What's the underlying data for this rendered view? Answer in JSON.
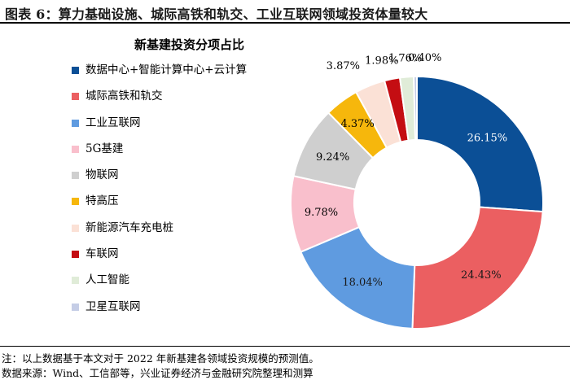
{
  "header": {
    "title": "图表 6：算力基础设施、城际高铁和轨交、工业互联网领域投资体量较大"
  },
  "chart_data": {
    "type": "pie",
    "title": "新基建投资分项占比",
    "donut": true,
    "categories": [
      "数据中心+智能计算中心+云计算",
      "城际高铁和轨交",
      "工业互联网",
      "5G基建",
      "物联网",
      "特高压",
      "新能源汽车充电桩",
      "车联网",
      "人工智能",
      "卫星互联网"
    ],
    "values": [
      26.15,
      24.43,
      18.04,
      9.78,
      9.24,
      4.37,
      3.87,
      1.98,
      1.76,
      0.4
    ],
    "value_labels": [
      "26.15%",
      "24.43%",
      "18.04%",
      "9.78%",
      "9.24%",
      "4.37%",
      "3.87%",
      "1.98%",
      "1.76%",
      "0.40%"
    ],
    "colors": [
      "#0b4f96",
      "#eb5f61",
      "#5f9be0",
      "#f9bfcc",
      "#cfcfcf",
      "#f6b70c",
      "#fbe1d6",
      "#c40d12",
      "#e0ecd8",
      "#c5cde6"
    ],
    "legend_position": "left",
    "start_angle_deg": 0,
    "direction": "clockwise"
  },
  "footer": {
    "note": "注：以上数据基于本文对于 2022 年新基建各领域投资规模的预测值。",
    "source": "数据来源：Wind、工信部等，兴业证券经济与金融研究院整理和测算"
  }
}
